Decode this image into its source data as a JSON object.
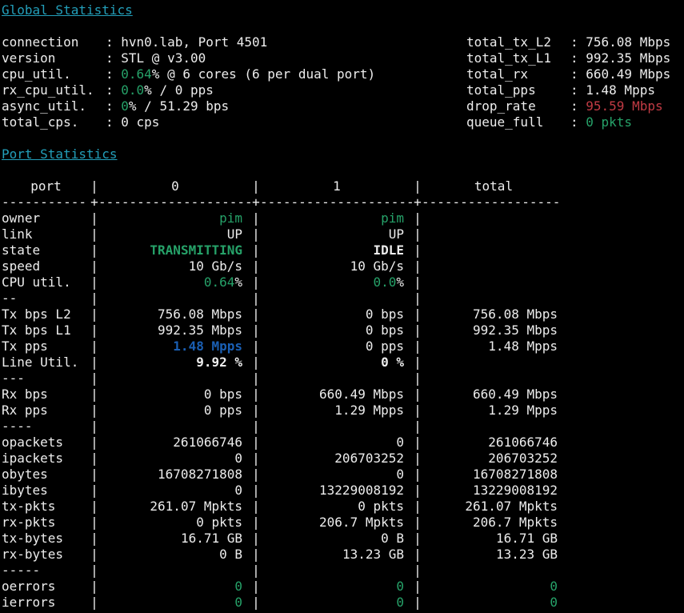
{
  "colors": {
    "background": "#000000",
    "foreground": "#ededed",
    "heading_teal": "#239fba",
    "green": "#26a269",
    "red": "#c13b44",
    "blue": "#1a5fb4"
  },
  "pipe": "|",
  "colon": ": ",
  "global": {
    "title": "Global Statistics",
    "left": [
      {
        "label": "connection",
        "value": [
          {
            "t": "hvn0.lab, Port 4501"
          }
        ]
      },
      {
        "label": "version",
        "value": [
          {
            "t": "STL @ v3.00"
          }
        ]
      },
      {
        "label": "cpu_util.",
        "value": [
          {
            "t": "0.64",
            "c": "green"
          },
          {
            "t": "% @ 6 cores (6 per dual port)"
          }
        ]
      },
      {
        "label": "rx_cpu_util.",
        "value": [
          {
            "t": "0.0",
            "c": "green"
          },
          {
            "t": "% / 0 pps"
          }
        ]
      },
      {
        "label": "async_util.",
        "value": [
          {
            "t": "0",
            "c": "green"
          },
          {
            "t": "% / 51.29 bps"
          }
        ]
      },
      {
        "label": "total_cps.",
        "value": [
          {
            "t": "0 cps"
          }
        ]
      }
    ],
    "right": [
      {
        "label": "total_tx_L2",
        "value": [
          {
            "t": "756.08 Mbps"
          }
        ]
      },
      {
        "label": "total_tx_L1",
        "value": [
          {
            "t": "992.35 Mbps"
          }
        ]
      },
      {
        "label": "total_rx",
        "value": [
          {
            "t": "660.49 Mbps"
          }
        ]
      },
      {
        "label": "total_pps",
        "value": [
          {
            "t": "1.48 Mpps"
          }
        ]
      },
      {
        "label": "drop_rate",
        "value": [
          {
            "t": "95.59 Mbps",
            "c": "red"
          }
        ]
      },
      {
        "label": "queue_full",
        "value": [
          {
            "t": "0 pkts",
            "c": "green"
          }
        ]
      }
    ]
  },
  "ports": {
    "title": "Port Statistics",
    "header": {
      "label": "port",
      "c0": "0",
      "c1": "1",
      "ct": "total"
    },
    "separator": {
      "label": "-----------",
      "cross": "+",
      "c0": "--------------------",
      "c1": "--------------------",
      "ct": "------------------"
    },
    "rows": [
      {
        "label": "owner",
        "c0": [
          {
            "t": "pim",
            "c": "green"
          }
        ],
        "c1": [
          {
            "t": "pim",
            "c": "green"
          }
        ],
        "ct": []
      },
      {
        "label": "link",
        "c0": [
          {
            "t": "UP"
          }
        ],
        "c1": [
          {
            "t": "UP"
          }
        ],
        "ct": []
      },
      {
        "label": "state",
        "c0": [
          {
            "t": "TRANSMITTING",
            "c": "green",
            "b": true
          }
        ],
        "c1": [
          {
            "t": "IDLE",
            "b": true
          }
        ],
        "ct": []
      },
      {
        "label": "speed",
        "c0": [
          {
            "t": "10 Gb/s"
          }
        ],
        "c1": [
          {
            "t": "10 Gb/s"
          }
        ],
        "ct": []
      },
      {
        "label": "CPU util.",
        "c0": [
          {
            "t": "0.64",
            "c": "green"
          },
          {
            "t": "%"
          }
        ],
        "c1": [
          {
            "t": "0.0",
            "c": "green"
          },
          {
            "t": "%"
          }
        ],
        "ct": []
      },
      {
        "label": "--",
        "c0": [],
        "c1": [],
        "ct": []
      },
      {
        "label": "Tx bps L2",
        "c0": [
          {
            "t": "756.08 Mbps"
          }
        ],
        "c1": [
          {
            "t": "0 bps"
          }
        ],
        "ct": [
          {
            "t": "756.08 Mbps"
          }
        ]
      },
      {
        "label": "Tx bps L1",
        "c0": [
          {
            "t": "992.35 Mbps"
          }
        ],
        "c1": [
          {
            "t": "0 bps"
          }
        ],
        "ct": [
          {
            "t": "992.35 Mbps"
          }
        ]
      },
      {
        "label": "Tx pps",
        "c0": [
          {
            "t": "1.48 Mpps",
            "c": "blue",
            "b": true
          }
        ],
        "c1": [
          {
            "t": "0 pps"
          }
        ],
        "ct": [
          {
            "t": "1.48 Mpps"
          }
        ]
      },
      {
        "label": "Line Util.",
        "c0": [
          {
            "t": "9.92 %",
            "b": true
          }
        ],
        "c1": [
          {
            "t": "0 %",
            "b": true
          }
        ],
        "ct": []
      },
      {
        "label": "---",
        "c0": [],
        "c1": [],
        "ct": []
      },
      {
        "label": "Rx bps",
        "c0": [
          {
            "t": "0 bps"
          }
        ],
        "c1": [
          {
            "t": "660.49 Mbps"
          }
        ],
        "ct": [
          {
            "t": "660.49 Mbps"
          }
        ]
      },
      {
        "label": "Rx pps",
        "c0": [
          {
            "t": "0 pps"
          }
        ],
        "c1": [
          {
            "t": "1.29 Mpps"
          }
        ],
        "ct": [
          {
            "t": "1.29 Mpps"
          }
        ]
      },
      {
        "label": "----",
        "c0": [],
        "c1": [],
        "ct": []
      },
      {
        "label": "opackets",
        "c0": [
          {
            "t": "261066746"
          }
        ],
        "c1": [
          {
            "t": "0"
          }
        ],
        "ct": [
          {
            "t": "261066746"
          }
        ]
      },
      {
        "label": "ipackets",
        "c0": [
          {
            "t": "0"
          }
        ],
        "c1": [
          {
            "t": "206703252"
          }
        ],
        "ct": [
          {
            "t": "206703252"
          }
        ]
      },
      {
        "label": "obytes",
        "c0": [
          {
            "t": "16708271808"
          }
        ],
        "c1": [
          {
            "t": "0"
          }
        ],
        "ct": [
          {
            "t": "16708271808"
          }
        ]
      },
      {
        "label": "ibytes",
        "c0": [
          {
            "t": "0"
          }
        ],
        "c1": [
          {
            "t": "13229008192"
          }
        ],
        "ct": [
          {
            "t": "13229008192"
          }
        ]
      },
      {
        "label": "tx-pkts",
        "c0": [
          {
            "t": "261.07 Mpkts"
          }
        ],
        "c1": [
          {
            "t": "0 pkts"
          }
        ],
        "ct": [
          {
            "t": "261.07 Mpkts"
          }
        ]
      },
      {
        "label": "rx-pkts",
        "c0": [
          {
            "t": "0 pkts"
          }
        ],
        "c1": [
          {
            "t": "206.7 Mpkts"
          }
        ],
        "ct": [
          {
            "t": "206.7 Mpkts"
          }
        ]
      },
      {
        "label": "tx-bytes",
        "c0": [
          {
            "t": "16.71 GB"
          }
        ],
        "c1": [
          {
            "t": "0 B"
          }
        ],
        "ct": [
          {
            "t": "16.71 GB"
          }
        ]
      },
      {
        "label": "rx-bytes",
        "c0": [
          {
            "t": "0 B"
          }
        ],
        "c1": [
          {
            "t": "13.23 GB"
          }
        ],
        "ct": [
          {
            "t": "13.23 GB"
          }
        ]
      },
      {
        "label": "-----",
        "c0": [],
        "c1": [],
        "ct": []
      },
      {
        "label": "oerrors",
        "c0": [
          {
            "t": "0",
            "c": "green"
          }
        ],
        "c1": [
          {
            "t": "0",
            "c": "green"
          }
        ],
        "ct": [
          {
            "t": "0",
            "c": "green"
          }
        ]
      },
      {
        "label": "ierrors",
        "c0": [
          {
            "t": "0",
            "c": "green"
          }
        ],
        "c1": [
          {
            "t": "0",
            "c": "green"
          }
        ],
        "ct": [
          {
            "t": "0",
            "c": "green"
          }
        ]
      }
    ]
  }
}
